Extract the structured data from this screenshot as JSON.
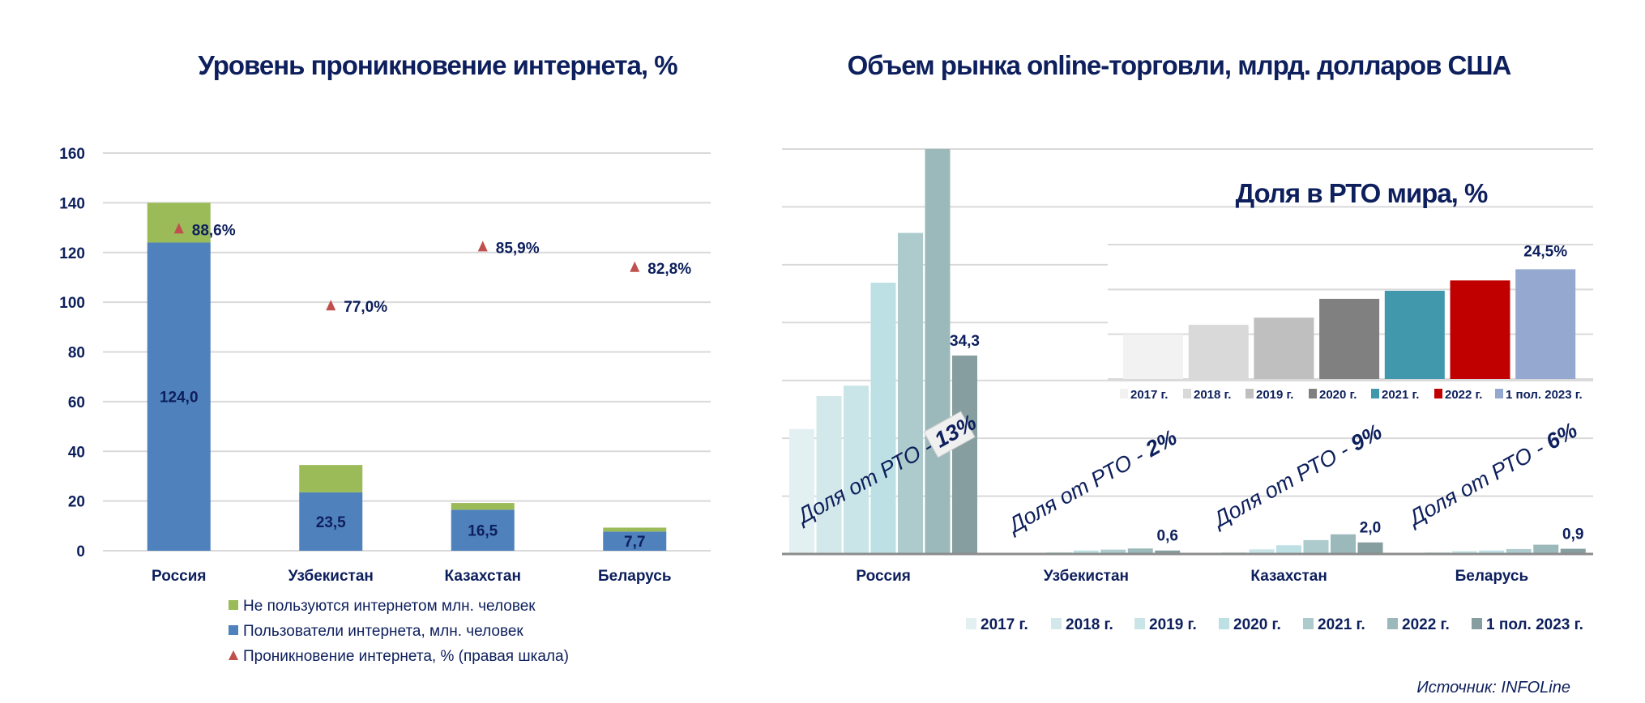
{
  "chart_data": [
    {
      "type": "bar",
      "title": "Уровень проникновение интернета, %",
      "stacked": true,
      "categories": [
        "Россия",
        "Узбекистан",
        "Казахстан",
        "Беларусь"
      ],
      "ylim": [
        0,
        160
      ],
      "yticks": [
        "0",
        "20",
        "40",
        "60",
        "80",
        "100",
        "120",
        "140",
        "160"
      ],
      "grid": true,
      "legend_position": "bottom",
      "series": [
        {
          "name": "Пользователи интернета, млн. человек",
          "color": "#4f81bd",
          "values": [
            124.0,
            23.5,
            16.5,
            7.7
          ],
          "labels": [
            "124,0",
            "23,5",
            "16,5",
            "7,7"
          ]
        },
        {
          "name": "Не пользуются интернетом млн. человек",
          "color": "#9bbb59",
          "values": [
            16.0,
            11.0,
            2.7,
            1.6
          ]
        },
        {
          "name": "Проникновение интернета, % (правая шкала)",
          "type": "scatter",
          "marker": "triangle",
          "color": "#c0504d",
          "axis": "right",
          "right_ylim": [
            40,
            100
          ],
          "values": [
            88.6,
            77.0,
            85.9,
            82.8
          ],
          "labels": [
            "88,6%",
            "77,0%",
            "85,9%",
            "82,8%"
          ]
        }
      ]
    },
    {
      "type": "bar",
      "title": "Объем рынка online-торговли, млрд. долларов США",
      "categories": [
        "Россия",
        "Узбекистан",
        "Казахстан",
        "Беларусь"
      ],
      "ylim": [
        0,
        70
      ],
      "grid": true,
      "legend_position": "bottom",
      "series": [
        {
          "name": "2017 г.",
          "color": "#e2f0f1",
          "values": [
            21.6,
            0.05,
            0.05,
            0.05
          ]
        },
        {
          "name": "2018 г.",
          "color": "#d3e8ea",
          "values": [
            27.3,
            0.1,
            0.3,
            0.3
          ]
        },
        {
          "name": "2019 г.",
          "color": "#c9e5e7",
          "values": [
            29.1,
            0.3,
            0.8,
            0.5
          ]
        },
        {
          "name": "2020 г.",
          "color": "#bce0e3",
          "values": [
            46.9,
            0.6,
            1.5,
            0.6
          ]
        },
        {
          "name": "2021 г.",
          "color": "#adcbcd",
          "values": [
            55.5,
            0.75,
            2.4,
            0.85
          ]
        },
        {
          "name": "2022 г.",
          "color": "#9bb9ba",
          "values": [
            70,
            0.95,
            3.4,
            1.6
          ]
        },
        {
          "name": "1 пол. 2023 г.",
          "color": "#869e9f",
          "values": [
            34.3,
            0.6,
            2.0,
            0.9
          ],
          "labels": [
            "34,3",
            "0,6",
            "2,0",
            "0,9"
          ]
        }
      ],
      "annotations": [
        {
          "prefix": "Доля от РТО - ",
          "value": "13%"
        },
        {
          "prefix": "Доля от РТО - ",
          "value": "2%"
        },
        {
          "prefix": "Доля от РТО - ",
          "value": "9%"
        },
        {
          "prefix": "Доля от РТО - ",
          "value": "6%"
        }
      ]
    },
    {
      "type": "bar",
      "title": "Доля в РТО мира, %",
      "categories": [
        "2017 г.",
        "2018 г.",
        "2019 г.",
        "2020 г.",
        "2021 г.",
        "2022 г.",
        "1 пол. 2023 г."
      ],
      "values": [
        10.0,
        12.1,
        13.7,
        17.9,
        19.7,
        22.0,
        24.5
      ],
      "colors": [
        "#f2f2f2",
        "#d9d9d9",
        "#bfbfbf",
        "#808080",
        "#4197ac",
        "#c00000",
        "#95a9d0"
      ],
      "labels": [
        "",
        "",
        "",
        "",
        "",
        "",
        "24,5%"
      ],
      "ylim": [
        0,
        30
      ],
      "grid": true,
      "legend_position": "bottom"
    }
  ],
  "source": "Источник: INFOLine",
  "text_color": "#0d1f5c"
}
